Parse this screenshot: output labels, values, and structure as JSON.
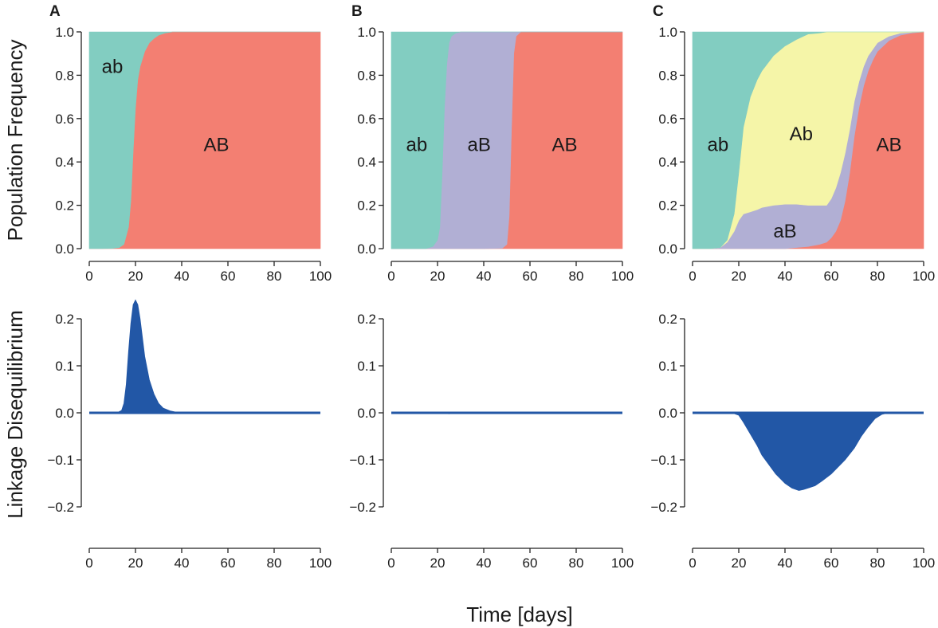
{
  "figure": {
    "xlabel": "Time [days]",
    "ylabel_top": "Population Frequency",
    "ylabel_bottom": "Linkage Disequilibrium"
  },
  "colors": {
    "ab": "#82cdc1",
    "aB": "#b1afd4",
    "Ab": "#f5f5a8",
    "AB": "#f37f72",
    "ld": "#2257a6"
  },
  "chart_data": [
    {
      "panel": "A",
      "type": "area",
      "role": "frequency",
      "title": "",
      "xlabel": "",
      "ylabel": "Population Frequency",
      "xlim": [
        0,
        100
      ],
      "ylim": [
        0,
        1
      ],
      "xticks": [
        0,
        20,
        40,
        60,
        80,
        100
      ],
      "yticks": [
        "0.0",
        "0.2",
        "0.4",
        "0.6",
        "0.8",
        "1.0"
      ],
      "x": [
        0,
        5,
        10,
        13,
        15,
        17,
        18,
        19,
        20,
        21,
        22,
        24,
        26,
        28,
        30,
        33,
        36,
        40,
        50,
        60,
        70,
        80,
        90,
        100
      ],
      "series": [
        {
          "name": "AB",
          "values": [
            0,
            0,
            0.001,
            0.005,
            0.02,
            0.1,
            0.22,
            0.45,
            0.65,
            0.78,
            0.84,
            0.91,
            0.95,
            0.97,
            0.985,
            0.995,
            1,
            1,
            1,
            1,
            1,
            1,
            1,
            1
          ]
        },
        {
          "name": "ab",
          "values": [
            1,
            1,
            0.999,
            0.995,
            0.98,
            0.9,
            0.78,
            0.55,
            0.35,
            0.22,
            0.16,
            0.09,
            0.05,
            0.03,
            0.015,
            0.005,
            0,
            0,
            0,
            0,
            0,
            0,
            0,
            0
          ]
        }
      ],
      "labels": [
        {
          "text": "ab",
          "x": 10,
          "y": 0.84
        },
        {
          "text": "AB",
          "x": 55,
          "y": 0.48
        }
      ]
    },
    {
      "panel": "B",
      "type": "area",
      "role": "frequency",
      "title": "",
      "xlabel": "",
      "ylabel": "",
      "xlim": [
        0,
        100
      ],
      "ylim": [
        0,
        1
      ],
      "xticks": [
        0,
        20,
        40,
        60,
        80,
        100
      ],
      "yticks": [
        "0.0",
        "0.2",
        "0.4",
        "0.6",
        "0.8",
        "1.0"
      ],
      "x": [
        0,
        15,
        18,
        20,
        21,
        22,
        23,
        24,
        25,
        26,
        28,
        30,
        40,
        48,
        50,
        51,
        52,
        53,
        54,
        56,
        60,
        70,
        80,
        90,
        100
      ],
      "series": [
        {
          "name": "AB",
          "values": [
            0,
            0,
            0,
            0,
            0,
            0,
            0,
            0,
            0,
            0,
            0,
            0,
            0,
            0.002,
            0.02,
            0.15,
            0.55,
            0.9,
            0.98,
            1,
            1,
            1,
            1,
            1,
            1
          ]
        },
        {
          "name": "aB",
          "values": [
            0,
            0,
            0.01,
            0.04,
            0.1,
            0.35,
            0.65,
            0.85,
            0.95,
            0.98,
            0.995,
            1,
            1,
            0.998,
            0.98,
            0.85,
            0.45,
            0.1,
            0.02,
            0,
            0,
            0,
            0,
            0,
            0
          ]
        },
        {
          "name": "ab",
          "values": [
            1,
            1,
            0.99,
            0.96,
            0.9,
            0.65,
            0.35,
            0.15,
            0.05,
            0.02,
            0.005,
            0,
            0,
            0,
            0,
            0,
            0,
            0,
            0,
            0,
            0,
            0,
            0,
            0,
            0
          ]
        }
      ],
      "labels": [
        {
          "text": "ab",
          "x": 11,
          "y": 0.48
        },
        {
          "text": "aB",
          "x": 38,
          "y": 0.48
        },
        {
          "text": "AB",
          "x": 75,
          "y": 0.48
        }
      ]
    },
    {
      "panel": "C",
      "type": "area",
      "role": "frequency",
      "title": "",
      "xlabel": "",
      "ylabel": "",
      "xlim": [
        0,
        100
      ],
      "ylim": [
        0,
        1
      ],
      "xticks": [
        0,
        20,
        40,
        60,
        80,
        100
      ],
      "yticks": [
        "0.0",
        "0.2",
        "0.4",
        "0.6",
        "0.8",
        "1.0"
      ],
      "x": [
        0,
        8,
        12,
        15,
        18,
        20,
        22,
        25,
        28,
        30,
        35,
        40,
        45,
        50,
        55,
        58,
        60,
        62,
        64,
        66,
        68,
        70,
        72,
        74,
        76,
        78,
        80,
        85,
        90,
        95,
        100
      ],
      "series": [
        {
          "name": "AB",
          "values": [
            0,
            0,
            0,
            0,
            0,
            0,
            0,
            0,
            0,
            0,
            0,
            0,
            0.005,
            0.01,
            0.02,
            0.03,
            0.05,
            0.08,
            0.13,
            0.22,
            0.35,
            0.52,
            0.65,
            0.75,
            0.82,
            0.87,
            0.91,
            0.96,
            0.985,
            0.995,
            1
          ]
        },
        {
          "name": "aB",
          "values": [
            0,
            0,
            0.005,
            0.03,
            0.08,
            0.13,
            0.16,
            0.17,
            0.18,
            0.19,
            0.2,
            0.205,
            0.2,
            0.19,
            0.18,
            0.17,
            0.18,
            0.2,
            0.22,
            0.22,
            0.2,
            0.16,
            0.12,
            0.09,
            0.07,
            0.05,
            0.04,
            0.02,
            0.01,
            0.003,
            0
          ]
        },
        {
          "name": "Ab",
          "values": [
            0,
            0,
            0,
            0.01,
            0.08,
            0.22,
            0.4,
            0.53,
            0.6,
            0.63,
            0.69,
            0.73,
            0.76,
            0.79,
            0.795,
            0.8,
            0.77,
            0.72,
            0.65,
            0.56,
            0.45,
            0.32,
            0.23,
            0.16,
            0.11,
            0.08,
            0.05,
            0.02,
            0.005,
            0.002,
            0
          ]
        },
        {
          "name": "ab",
          "values": [
            1,
            1,
            0.995,
            0.96,
            0.84,
            0.65,
            0.44,
            0.3,
            0.22,
            0.18,
            0.11,
            0.065,
            0.035,
            0.01,
            0.005,
            0,
            0,
            0,
            0,
            0,
            0,
            0,
            0,
            0,
            0,
            0,
            0,
            0,
            0,
            0,
            0
          ]
        }
      ],
      "labels": [
        {
          "text": "ab",
          "x": 11,
          "y": 0.48
        },
        {
          "text": "Ab",
          "x": 47,
          "y": 0.53
        },
        {
          "text": "aB",
          "x": 40,
          "y": 0.08
        },
        {
          "text": "AB",
          "x": 85,
          "y": 0.48
        }
      ]
    },
    {
      "panel": "A",
      "type": "area",
      "role": "ld",
      "title": "",
      "xlabel": "",
      "ylabel": "Linkage Disequilibrium",
      "xlim": [
        0,
        100
      ],
      "ylim": [
        -0.2,
        0.2
      ],
      "xticks": [
        0,
        20,
        40,
        60,
        80,
        100
      ],
      "yticks": [
        "0.2",
        "0.1",
        "0.0",
        "−0.1",
        "−0.2"
      ],
      "x": [
        0,
        12,
        14,
        15,
        16,
        17,
        18,
        19,
        20,
        21,
        22,
        23,
        24,
        26,
        28,
        30,
        32,
        35,
        38,
        42,
        100
      ],
      "series": [
        {
          "name": "LD",
          "values": [
            0,
            0,
            0.005,
            0.02,
            0.06,
            0.13,
            0.19,
            0.23,
            0.24,
            0.23,
            0.2,
            0.16,
            0.12,
            0.07,
            0.04,
            0.02,
            0.01,
            0.004,
            0.001,
            0,
            0
          ]
        }
      ]
    },
    {
      "panel": "B",
      "type": "area",
      "role": "ld",
      "title": "",
      "xlabel": "",
      "ylabel": "",
      "xlim": [
        0,
        100
      ],
      "ylim": [
        -0.2,
        0.2
      ],
      "xticks": [
        0,
        20,
        40,
        60,
        80,
        100
      ],
      "yticks": [
        "0.2",
        "0.1",
        "0.0",
        "−0.1",
        "−0.2"
      ],
      "x": [
        0,
        20,
        25,
        30,
        100
      ],
      "series": [
        {
          "name": "LD",
          "values": [
            0,
            0,
            -0.002,
            0,
            0
          ]
        }
      ]
    },
    {
      "panel": "C",
      "type": "area",
      "role": "ld",
      "title": "",
      "xlabel": "",
      "ylabel": "",
      "xlim": [
        0,
        100
      ],
      "ylim": [
        -0.2,
        0.2
      ],
      "xticks": [
        0,
        20,
        40,
        60,
        80,
        100
      ],
      "yticks": [
        "0.2",
        "0.1",
        "0.0",
        "−0.1",
        "−0.2"
      ],
      "x": [
        0,
        17,
        20,
        22,
        25,
        28,
        30,
        33,
        36,
        40,
        43,
        46,
        48,
        50,
        53,
        56,
        60,
        63,
        66,
        70,
        73,
        76,
        79,
        82,
        85,
        100
      ],
      "series": [
        {
          "name": "LD",
          "values": [
            0,
            0,
            -0.005,
            -0.02,
            -0.045,
            -0.07,
            -0.09,
            -0.11,
            -0.13,
            -0.15,
            -0.16,
            -0.165,
            -0.163,
            -0.16,
            -0.155,
            -0.145,
            -0.13,
            -0.115,
            -0.1,
            -0.075,
            -0.05,
            -0.03,
            -0.012,
            -0.003,
            0,
            0
          ]
        }
      ]
    }
  ]
}
